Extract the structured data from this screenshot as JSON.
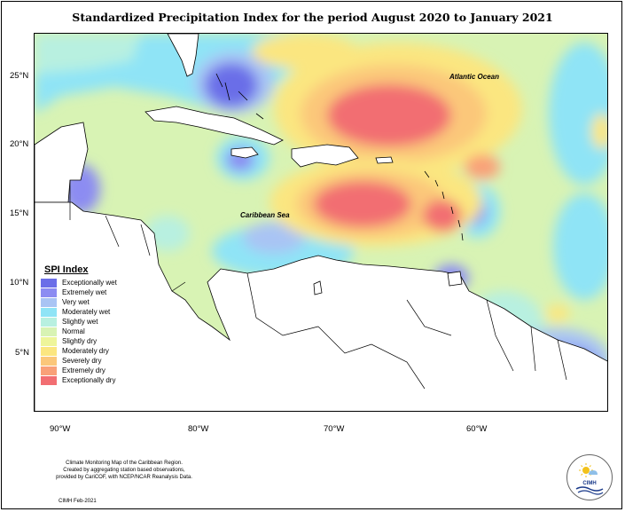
{
  "title": "Standardized Precipitation Index for the period August 2020 to January 2021",
  "map_labels": {
    "atlantic": "Atlantic Ocean",
    "caribbean": "Caribbean Sea"
  },
  "axes": {
    "lat_ticks": [
      "25°N",
      "20°N",
      "15°N",
      "10°N",
      "5°N"
    ],
    "lon_ticks": [
      "90°W",
      "80°W",
      "70°W",
      "60°W"
    ]
  },
  "legend": {
    "title": "SPI Index",
    "items": [
      {
        "label": "Exceptionally wet",
        "color": "#6b6ee8"
      },
      {
        "label": "Extremely wet",
        "color": "#8c8cf2"
      },
      {
        "label": "Very wet",
        "color": "#a9c4f4"
      },
      {
        "label": "Moderately wet",
        "color": "#8fe4f6"
      },
      {
        "label": "Slightly wet",
        "color": "#b8f0e0"
      },
      {
        "label": "Normal",
        "color": "#d8f3b4"
      },
      {
        "label": "Slightly dry",
        "color": "#eef59a"
      },
      {
        "label": "Moderately dry",
        "color": "#fbe680"
      },
      {
        "label": "Severely dry",
        "color": "#fbc77a"
      },
      {
        "label": "Extremely dry",
        "color": "#f9a078"
      },
      {
        "label": "Exceptionally dry",
        "color": "#f26e72"
      }
    ]
  },
  "credit": {
    "line1": "Climate Monitoring Map of the Caribbean Region.",
    "line2": "Created by aggregating station based observations,",
    "line3": "provided by CariCOF, with NCEP/NCAR Reanalysis Data.",
    "date": "CIMH Feb-2021"
  },
  "logo": {
    "text": "CIMH",
    "icon": "sun-cloud-icon"
  }
}
